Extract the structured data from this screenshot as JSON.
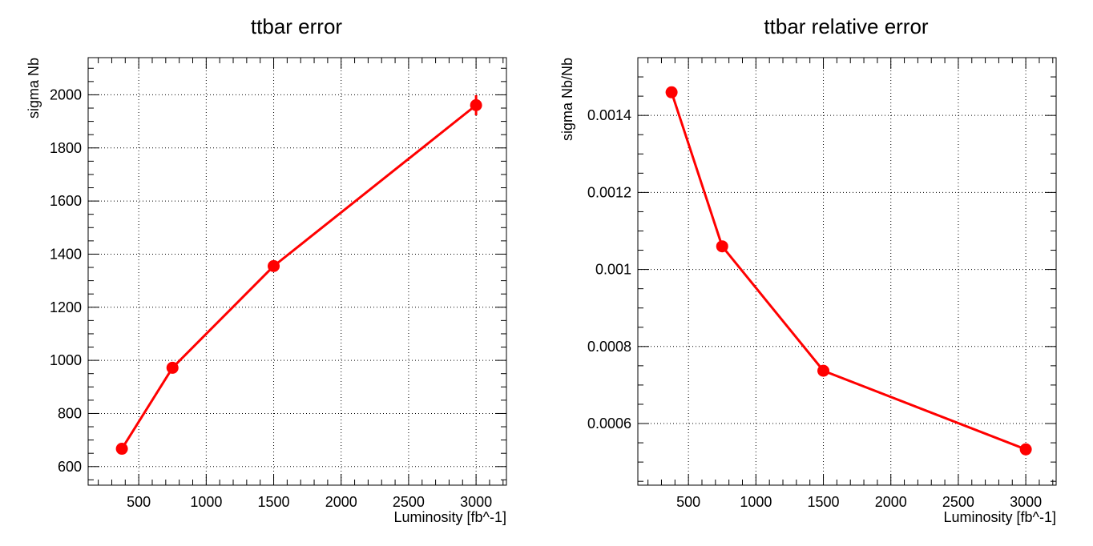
{
  "chart_data": [
    {
      "type": "line",
      "title": "ttbar error",
      "xlabel": "Luminosity [fb^-1]",
      "ylabel": "sigma Nb",
      "xlim": [
        125,
        3225
      ],
      "ylim": [
        530,
        2140
      ],
      "grid": true,
      "x_ticks": [
        500,
        1000,
        1500,
        2000,
        2500,
        3000
      ],
      "y_ticks": [
        600,
        800,
        1000,
        1200,
        1400,
        1600,
        1800,
        2000
      ],
      "y_tick_labels": [
        "600",
        "800",
        "1000",
        "1200",
        "1400",
        "1600",
        "1800",
        "2000"
      ],
      "color": "#ff0000",
      "series": [
        {
          "x": [
            375,
            750,
            1500,
            3000
          ],
          "values": [
            667,
            972,
            1355,
            1961
          ],
          "errors": [
            8,
            10,
            14,
            38
          ]
        }
      ]
    },
    {
      "type": "line",
      "title": "ttbar relative error",
      "xlabel": "Luminosity [fb^-1]",
      "ylabel": "sigma Nb/Nb",
      "xlim": [
        125,
        3225
      ],
      "ylim": [
        0.00044,
        0.00155
      ],
      "grid": true,
      "x_ticks": [
        500,
        1000,
        1500,
        2000,
        2500,
        3000
      ],
      "y_ticks": [
        0.0006,
        0.0008,
        0.001,
        0.0012,
        0.0014
      ],
      "y_tick_labels": [
        "0.0006",
        "0.0008",
        "0.001",
        "0.0012",
        "0.0014"
      ],
      "color": "#ff0000",
      "series": [
        {
          "x": [
            375,
            750,
            1500,
            3000
          ],
          "values": [
            0.00146,
            0.00106,
            0.000737,
            0.000533
          ],
          "errors": [
            0,
            0,
            0,
            0
          ]
        }
      ]
    }
  ]
}
